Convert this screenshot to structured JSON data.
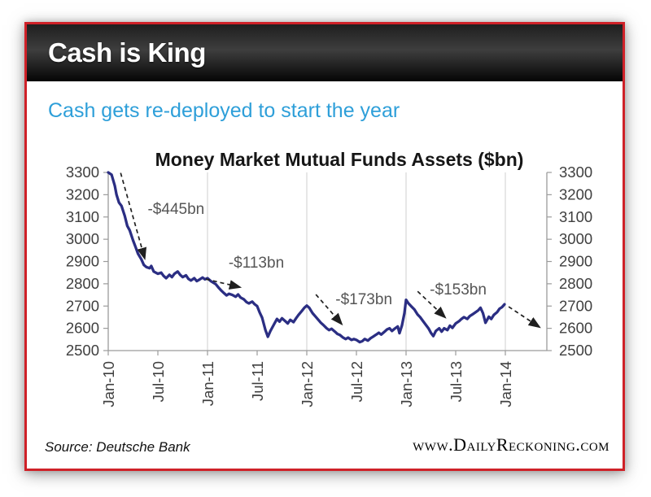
{
  "header": {
    "title": "Cash is King"
  },
  "subtitle": {
    "text": "Cash gets re-deployed to start the year"
  },
  "footer": {
    "source": "Source: Deutsche Bank",
    "site": "www.DailyReckoning.com"
  },
  "colors": {
    "accent_red": "#cf2128",
    "header_black": "#111111",
    "subtitle_blue": "#2e9fd9",
    "line_navy": "#2b2e83",
    "gridline": "#cfcfcf",
    "axis": "#9b9b9b",
    "tick_text": "#3f3f3f",
    "annotation_text": "#565656",
    "arrow": "#1f1f1f"
  },
  "chart_data": {
    "type": "line",
    "title": "Money Market Mutual Funds Assets ($bn)",
    "xlabel": "",
    "ylabel": "",
    "x_unit": "months since Jan-2010",
    "ylim": [
      2500,
      3300
    ],
    "y_ticks": [
      2500,
      2600,
      2700,
      2800,
      2900,
      3000,
      3100,
      3200,
      3300
    ],
    "y_axis_sides": [
      "left",
      "right"
    ],
    "x_ticks": {
      "positions": [
        0,
        6,
        12,
        18,
        24,
        30,
        36,
        42,
        48
      ],
      "labels": [
        "Jan-10",
        "Jul-10",
        "Jan-11",
        "Jul-11",
        "Jan-12",
        "Jul-12",
        "Jan-13",
        "Jul-13",
        "Jan-14"
      ]
    },
    "gridlines_at_months": [
      12,
      24,
      36,
      48
    ],
    "legend": null,
    "series": [
      {
        "name": "Money Market Mutual Funds Assets ($bn)",
        "points": [
          [
            0,
            3300
          ],
          [
            0.4,
            3290
          ],
          [
            0.8,
            3240
          ],
          [
            1,
            3200
          ],
          [
            1.3,
            3165
          ],
          [
            1.6,
            3150
          ],
          [
            2,
            3105
          ],
          [
            2.3,
            3060
          ],
          [
            2.6,
            3040
          ],
          [
            3,
            2995
          ],
          [
            3.3,
            2965
          ],
          [
            3.6,
            2935
          ],
          [
            4,
            2910
          ],
          [
            4.3,
            2885
          ],
          [
            4.6,
            2875
          ],
          [
            5,
            2870
          ],
          [
            5.2,
            2880
          ],
          [
            5.5,
            2855
          ],
          [
            6,
            2845
          ],
          [
            6.4,
            2850
          ],
          [
            6.7,
            2835
          ],
          [
            7,
            2825
          ],
          [
            7.4,
            2840
          ],
          [
            7.7,
            2830
          ],
          [
            8,
            2845
          ],
          [
            8.4,
            2855
          ],
          [
            8.7,
            2840
          ],
          [
            9,
            2830
          ],
          [
            9.4,
            2838
          ],
          [
            9.7,
            2822
          ],
          [
            10,
            2815
          ],
          [
            10.4,
            2825
          ],
          [
            10.7,
            2812
          ],
          [
            11,
            2818
          ],
          [
            11.4,
            2828
          ],
          [
            11.7,
            2820
          ],
          [
            12,
            2825
          ],
          [
            12.4,
            2812
          ],
          [
            12.7,
            2805
          ],
          [
            13,
            2798
          ],
          [
            13.4,
            2780
          ],
          [
            13.7,
            2768
          ],
          [
            14,
            2758
          ],
          [
            14.3,
            2748
          ],
          [
            14.6,
            2755
          ],
          [
            15,
            2750
          ],
          [
            15.4,
            2742
          ],
          [
            15.7,
            2752
          ],
          [
            16,
            2738
          ],
          [
            16.4,
            2730
          ],
          [
            16.7,
            2718
          ],
          [
            17,
            2712
          ],
          [
            17.4,
            2720
          ],
          [
            17.7,
            2708
          ],
          [
            18,
            2700
          ],
          [
            18.3,
            2672
          ],
          [
            18.6,
            2648
          ],
          [
            19,
            2592
          ],
          [
            19.3,
            2562
          ],
          [
            19.6,
            2588
          ],
          [
            20,
            2615
          ],
          [
            20.4,
            2642
          ],
          [
            20.7,
            2630
          ],
          [
            21,
            2645
          ],
          [
            21.4,
            2632
          ],
          [
            21.7,
            2622
          ],
          [
            22,
            2638
          ],
          [
            22.4,
            2628
          ],
          [
            22.7,
            2645
          ],
          [
            23,
            2660
          ],
          [
            23.4,
            2678
          ],
          [
            23.7,
            2692
          ],
          [
            24,
            2702
          ],
          [
            24.3,
            2692
          ],
          [
            24.7,
            2668
          ],
          [
            25,
            2655
          ],
          [
            25.4,
            2638
          ],
          [
            25.7,
            2625
          ],
          [
            26,
            2615
          ],
          [
            26.4,
            2600
          ],
          [
            26.7,
            2592
          ],
          [
            27,
            2598
          ],
          [
            27.4,
            2585
          ],
          [
            27.7,
            2575
          ],
          [
            28,
            2570
          ],
          [
            28.4,
            2558
          ],
          [
            28.7,
            2552
          ],
          [
            29,
            2558
          ],
          [
            29.4,
            2548
          ],
          [
            29.7,
            2552
          ],
          [
            30,
            2548
          ],
          [
            30.4,
            2538
          ],
          [
            30.7,
            2542
          ],
          [
            31,
            2552
          ],
          [
            31.4,
            2545
          ],
          [
            31.7,
            2555
          ],
          [
            32,
            2562
          ],
          [
            32.4,
            2572
          ],
          [
            32.7,
            2580
          ],
          [
            33,
            2572
          ],
          [
            33.4,
            2585
          ],
          [
            33.7,
            2595
          ],
          [
            34,
            2600
          ],
          [
            34.3,
            2588
          ],
          [
            34.6,
            2598
          ],
          [
            35,
            2608
          ],
          [
            35.2,
            2578
          ],
          [
            35.5,
            2612
          ],
          [
            35.8,
            2668
          ],
          [
            36,
            2728
          ],
          [
            36.3,
            2712
          ],
          [
            36.6,
            2700
          ],
          [
            37,
            2685
          ],
          [
            37.4,
            2662
          ],
          [
            37.7,
            2650
          ],
          [
            38,
            2635
          ],
          [
            38.4,
            2615
          ],
          [
            38.7,
            2600
          ],
          [
            39,
            2580
          ],
          [
            39.3,
            2565
          ],
          [
            39.6,
            2588
          ],
          [
            40,
            2600
          ],
          [
            40.3,
            2585
          ],
          [
            40.6,
            2600
          ],
          [
            41,
            2592
          ],
          [
            41.3,
            2612
          ],
          [
            41.6,
            2602
          ],
          [
            42,
            2622
          ],
          [
            42.4,
            2632
          ],
          [
            42.7,
            2642
          ],
          [
            43,
            2650
          ],
          [
            43.4,
            2642
          ],
          [
            43.7,
            2655
          ],
          [
            44,
            2662
          ],
          [
            44.4,
            2672
          ],
          [
            44.7,
            2680
          ],
          [
            45,
            2692
          ],
          [
            45.3,
            2668
          ],
          [
            45.6,
            2625
          ],
          [
            46,
            2652
          ],
          [
            46.3,
            2642
          ],
          [
            46.6,
            2660
          ],
          [
            47,
            2672
          ],
          [
            47.3,
            2688
          ],
          [
            47.6,
            2695
          ],
          [
            47.9,
            2708
          ]
        ]
      }
    ],
    "annotations": [
      {
        "label": "-$445bn",
        "label_pos": [
          8.2,
          3135
        ],
        "arrow_from": [
          1.5,
          3298
        ],
        "arrow_to": [
          4.4,
          2915
        ]
      },
      {
        "label": "-$113bn",
        "label_pos": [
          17.9,
          2895
        ],
        "arrow_from": [
          11.8,
          2821
        ],
        "arrow_to": [
          15.9,
          2785
        ]
      },
      {
        "label": "-$173bn",
        "label_pos": [
          30.9,
          2730
        ],
        "arrow_from": [
          25.1,
          2752
        ],
        "arrow_to": [
          28.2,
          2620
        ]
      },
      {
        "label": "-$153bn",
        "label_pos": [
          42.3,
          2774
        ],
        "arrow_from": [
          37.4,
          2766
        ],
        "arrow_to": [
          40.7,
          2650
        ]
      }
    ],
    "forecast_arrow": {
      "from": [
        48.4,
        2697
      ],
      "to": [
        52.1,
        2606
      ]
    }
  }
}
